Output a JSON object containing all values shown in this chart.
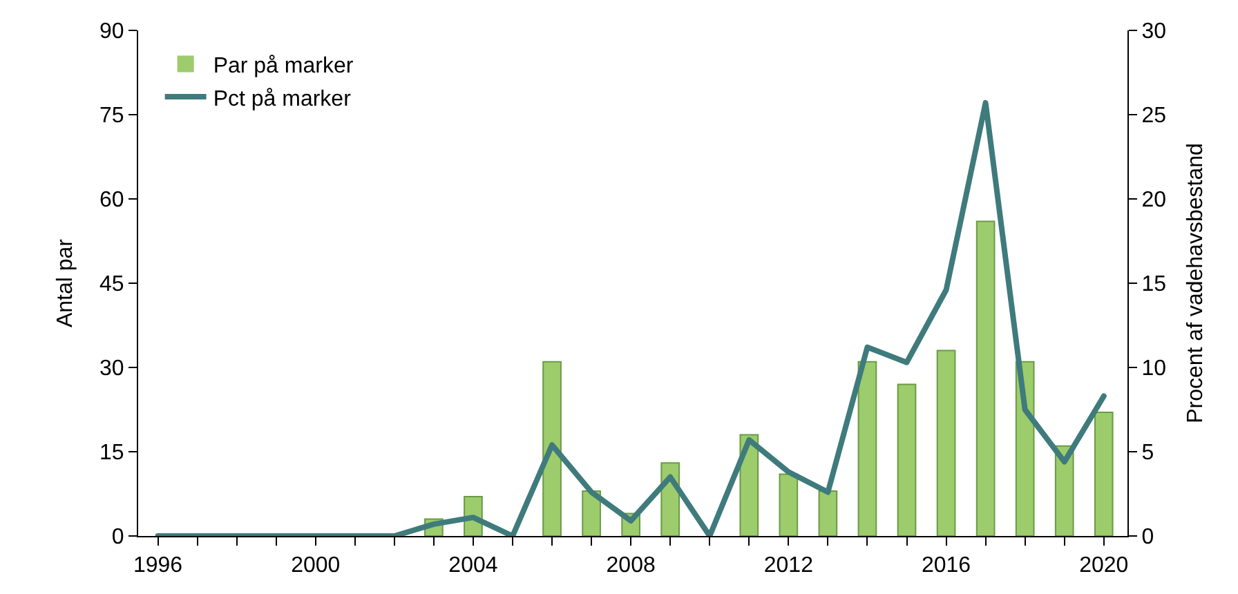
{
  "chart_data": {
    "type": "bar",
    "x": [
      1996,
      1997,
      1998,
      1999,
      2000,
      2001,
      2002,
      2003,
      2004,
      2005,
      2006,
      2007,
      2008,
      2009,
      2010,
      2011,
      2012,
      2013,
      2014,
      2015,
      2016,
      2017,
      2018,
      2019,
      2020
    ],
    "series": [
      {
        "name": "Par på marker",
        "color": "#9ccc6c",
        "values": [
          0,
          0,
          0,
          0,
          0,
          0,
          0,
          3,
          7,
          0,
          31,
          8,
          4,
          13,
          0,
          18,
          11,
          8,
          31,
          27,
          33,
          56,
          31,
          16,
          22
        ]
      },
      {
        "name": "Pct på marker",
        "type": "line",
        "axis": "y2",
        "color": "#3f7b7c",
        "values": [
          0,
          0,
          0,
          0,
          0,
          0,
          0,
          0.7,
          1.1,
          0,
          5.4,
          2.6,
          0.9,
          3.5,
          0,
          5.7,
          3.8,
          2.6,
          11.2,
          10.3,
          14.6,
          25.7,
          7.5,
          4.4,
          8.3
        ]
      }
    ],
    "ylabel": "Antal par",
    "y2label": "Procent af vadehavsbestand",
    "xlim": [
      1995.5,
      2020.6
    ],
    "xticks": [
      1996,
      {
        "value": 1997,
        "label": null
      },
      {
        "value": 1998,
        "label": null
      },
      {
        "value": 1999,
        "label": null
      },
      2000,
      {
        "value": 2001,
        "label": null
      },
      {
        "value": 2002,
        "label": null
      },
      {
        "value": 2003,
        "label": null
      },
      2004,
      {
        "value": 2005,
        "label": null
      },
      {
        "value": 2006,
        "label": null
      },
      {
        "value": 2007,
        "label": null
      },
      2008,
      {
        "value": 2009,
        "label": null
      },
      {
        "value": 2010,
        "label": null
      },
      {
        "value": 2011,
        "label": null
      },
      2012,
      {
        "value": 2013,
        "label": null
      },
      {
        "value": 2014,
        "label": null
      },
      {
        "value": 2015,
        "label": null
      },
      2016,
      {
        "value": 2017,
        "label": null
      },
      {
        "value": 2018,
        "label": null
      },
      {
        "value": 2019,
        "label": null
      },
      2020
    ],
    "ylim": [
      0,
      90
    ],
    "yticks": [
      0,
      15,
      30,
      45,
      60,
      75,
      90
    ],
    "y2lim": [
      0,
      30
    ],
    "y2ticks": [
      0,
      5,
      10,
      15,
      20,
      25,
      30
    ],
    "legend": "top left",
    "line_style": "solid",
    "marker": "none"
  }
}
